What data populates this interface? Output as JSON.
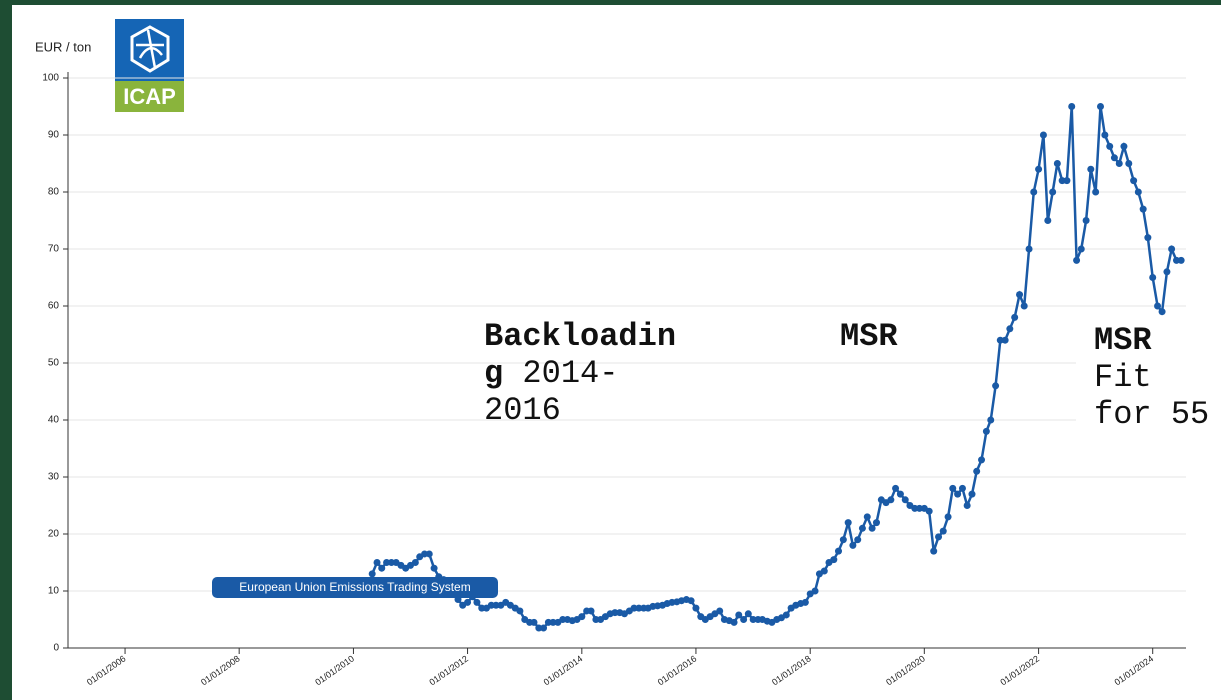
{
  "chart_data": {
    "type": "line",
    "y_label": "EUR / ton",
    "logo_text": "ICAP",
    "series": [
      {
        "name": "European Union Emissions Trading System",
        "color": "#1a5aa6",
        "x": [
          "01/05/2010",
          "01/06/2010",
          "01/07/2010",
          "01/08/2010",
          "01/09/2010",
          "01/10/2010",
          "01/11/2010",
          "01/12/2010",
          "01/01/2011",
          "01/02/2011",
          "01/03/2011",
          "01/04/2011",
          "01/05/2011",
          "01/06/2011",
          "01/07/2011",
          "01/08/2011",
          "01/09/2011",
          "01/10/2011",
          "01/11/2011",
          "01/12/2011",
          "01/01/2012",
          "01/02/2012",
          "01/03/2012",
          "01/04/2012",
          "01/05/2012",
          "01/06/2012",
          "01/07/2012",
          "01/08/2012",
          "01/09/2012",
          "01/10/2012",
          "01/11/2012",
          "01/12/2012",
          "01/01/2013",
          "01/02/2013",
          "01/03/2013",
          "01/04/2013",
          "01/05/2013",
          "01/06/2013",
          "01/07/2013",
          "01/08/2013",
          "01/09/2013",
          "01/10/2013",
          "01/11/2013",
          "01/12/2013",
          "01/01/2014",
          "01/02/2014",
          "01/03/2014",
          "01/04/2014",
          "01/05/2014",
          "01/06/2014",
          "01/07/2014",
          "01/08/2014",
          "01/09/2014",
          "01/10/2014",
          "01/11/2014",
          "01/12/2014",
          "01/01/2015",
          "01/02/2015",
          "01/03/2015",
          "01/04/2015",
          "01/05/2015",
          "01/06/2015",
          "01/07/2015",
          "01/08/2015",
          "01/09/2015",
          "01/10/2015",
          "01/11/2015",
          "01/12/2015",
          "01/01/2016",
          "01/02/2016",
          "01/03/2016",
          "01/04/2016",
          "01/05/2016",
          "01/06/2016",
          "01/07/2016",
          "01/08/2016",
          "01/09/2016",
          "01/10/2016",
          "01/11/2016",
          "01/12/2016",
          "01/01/2017",
          "01/02/2017",
          "01/03/2017",
          "01/04/2017",
          "01/05/2017",
          "01/06/2017",
          "01/07/2017",
          "01/08/2017",
          "01/09/2017",
          "01/10/2017",
          "01/11/2017",
          "01/12/2017",
          "01/01/2018",
          "01/02/2018",
          "01/03/2018",
          "01/04/2018",
          "01/05/2018",
          "01/06/2018",
          "01/07/2018",
          "01/08/2018",
          "01/09/2018",
          "01/10/2018",
          "01/11/2018",
          "01/12/2018",
          "01/01/2019",
          "01/02/2019",
          "01/03/2019",
          "01/04/2019",
          "01/05/2019",
          "01/06/2019",
          "01/07/2019",
          "01/08/2019",
          "01/09/2019",
          "01/10/2019",
          "01/11/2019",
          "01/12/2019",
          "01/01/2020",
          "01/02/2020",
          "01/03/2020",
          "01/04/2020",
          "01/05/2020",
          "01/06/2020",
          "01/07/2020",
          "01/08/2020",
          "01/09/2020",
          "01/10/2020",
          "01/11/2020",
          "01/12/2020",
          "01/01/2021",
          "01/02/2021",
          "01/03/2021",
          "01/04/2021",
          "01/05/2021",
          "01/06/2021",
          "01/07/2021",
          "01/08/2021",
          "01/09/2021",
          "01/10/2021",
          "01/11/2021",
          "01/12/2021",
          "01/01/2022",
          "01/02/2022",
          "01/03/2022",
          "01/04/2022",
          "01/05/2022",
          "01/06/2022",
          "01/07/2022",
          "01/08/2022",
          "01/09/2022",
          "01/10/2022",
          "01/11/2022",
          "01/12/2022",
          "01/01/2023",
          "01/02/2023",
          "01/03/2023",
          "01/04/2023",
          "01/05/2023",
          "01/06/2023",
          "01/07/2023",
          "01/08/2023",
          "01/09/2023",
          "01/10/2023",
          "01/11/2023",
          "01/12/2023",
          "01/01/2024",
          "01/02/2024",
          "01/03/2024",
          "01/04/2024",
          "01/05/2024",
          "01/06/2024",
          "01/07/2024"
        ],
        "values": [
          13,
          15,
          14,
          15,
          15,
          15,
          14.5,
          14,
          14.5,
          15,
          16,
          16.5,
          16.5,
          14,
          12.5,
          12,
          11,
          10,
          8.5,
          7.5,
          8,
          9,
          8,
          7,
          7,
          7.5,
          7.5,
          7.5,
          8,
          7.5,
          7,
          6.5,
          5,
          4.5,
          4.5,
          3.5,
          3.5,
          4.5,
          4.5,
          4.5,
          5,
          5,
          4.8,
          5,
          5.5,
          6.5,
          6.5,
          5,
          5,
          5.5,
          6,
          6.2,
          6.2,
          6,
          6.5,
          7,
          7,
          7,
          7,
          7.3,
          7.4,
          7.5,
          7.8,
          8,
          8.1,
          8.3,
          8.5,
          8.3,
          7,
          5.5,
          5,
          5.5,
          6,
          6.5,
          5,
          4.8,
          4.5,
          5.8,
          5,
          6,
          5,
          5,
          5,
          4.7,
          4.5,
          5,
          5.3,
          5.8,
          7,
          7.5,
          7.8,
          8,
          9.5,
          10,
          13,
          13.5,
          15,
          15.5,
          17,
          19,
          22,
          18,
          19,
          21,
          23,
          21,
          22,
          26,
          25.5,
          26,
          28,
          27,
          26,
          25,
          24.5,
          24.5,
          24.5,
          24,
          17,
          19.5,
          20.5,
          23,
          28,
          27,
          28,
          25,
          27,
          31,
          33,
          38,
          40,
          46,
          54,
          54,
          56,
          58,
          62,
          60,
          70,
          80,
          84,
          90,
          75,
          80,
          85,
          82,
          82,
          95,
          68,
          70,
          75,
          84,
          80,
          95,
          90,
          88,
          86,
          85,
          88,
          85,
          82,
          80,
          77,
          72,
          65,
          60,
          59,
          66,
          70,
          68,
          68
        ]
      }
    ],
    "xlim": [
      "01/01/2005",
      "01/08/2024"
    ],
    "xticks": [
      "01/01/2006",
      "01/01/2008",
      "01/01/2010",
      "01/01/2012",
      "01/01/2014",
      "01/01/2016",
      "01/01/2018",
      "01/01/2020",
      "01/01/2022",
      "01/01/2024"
    ],
    "ylim": [
      0,
      100
    ],
    "yticks": [
      0,
      10,
      20,
      30,
      40,
      50,
      60,
      70,
      80,
      90,
      100
    ],
    "grid": true,
    "annotations": [
      {
        "bold": "Backloading",
        "text": "2014-2016"
      },
      {
        "bold": "MSR"
      },
      {
        "bold": "MSR",
        "text": "Fit for 55"
      }
    ]
  }
}
